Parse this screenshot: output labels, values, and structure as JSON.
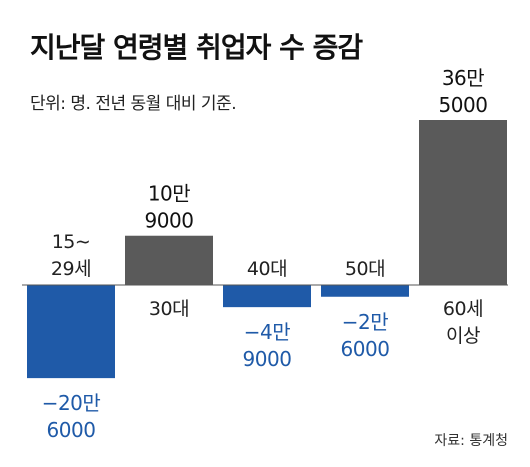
{
  "chart_data": {
    "type": "bar",
    "title": "지난달 연령별 취업자 수 증감",
    "subtitle": "단위: 명. 전년 동월 대비 기준.",
    "source": "자료: 통계청",
    "categories": [
      "15~29세",
      "30대",
      "40대",
      "50대",
      "60세 이상"
    ],
    "category_lines": [
      [
        "15∼",
        "29세"
      ],
      [
        "30대"
      ],
      [
        "40대"
      ],
      [
        "50대"
      ],
      [
        "60세",
        "이상"
      ]
    ],
    "values": [
      -206000,
      109000,
      -49000,
      -26000,
      365000
    ],
    "value_labels": [
      [
        "−20만",
        "6000"
      ],
      [
        "10만",
        "9000"
      ],
      [
        "−4만",
        "9000"
      ],
      [
        "−2만",
        "6000"
      ],
      [
        "36만",
        "5000"
      ]
    ],
    "colors": {
      "positive": "#5a5a5a",
      "negative": "#1f5aa8",
      "label_negative": "#1f5aa8",
      "label_positive": "#111111",
      "baseline": "#555555"
    },
    "ylim": [
      -206000,
      365000
    ],
    "grid": false,
    "legend": "none"
  }
}
